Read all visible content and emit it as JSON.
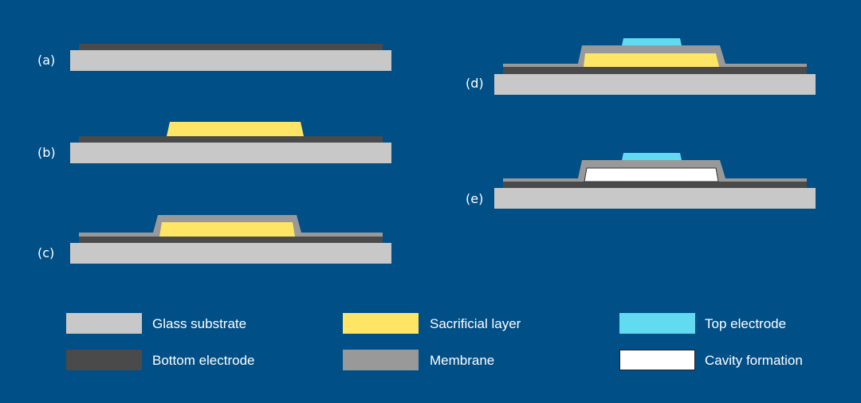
{
  "colors": {
    "background": "#004f86",
    "glass_substrate": "#c8c8c8",
    "bottom_electrode": "#4a4a4a",
    "membrane": "#999999",
    "sacrificial_layer": "#ffe566",
    "top_electrode": "#62daf0",
    "cavity": "#ffffff"
  },
  "steps": [
    {
      "label": "(a)"
    },
    {
      "label": "(b)"
    },
    {
      "label": "(c)"
    },
    {
      "label": "(d)"
    },
    {
      "label": "(e)"
    }
  ],
  "legend": [
    {
      "label": "Glass substrate",
      "color": "#c8c8c8"
    },
    {
      "label": "Sacrificial layer",
      "color": "#ffe566"
    },
    {
      "label": "Top electrode",
      "color": "#62daf0"
    },
    {
      "label": "Bottom electrode",
      "color": "#4a4a4a"
    },
    {
      "label": "Membrane",
      "color": "#999999"
    },
    {
      "label": "Cavity formation",
      "color": "#ffffff"
    }
  ]
}
